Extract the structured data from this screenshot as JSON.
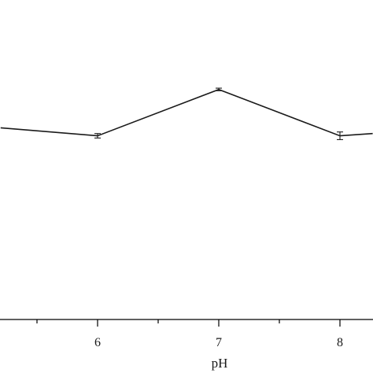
{
  "chart_data": {
    "type": "line",
    "xlabel": "pH",
    "ylabel": "",
    "title": "",
    "x_ticks_major": [
      6,
      7,
      8
    ],
    "x_ticks_minor": [
      5.5,
      6.5,
      7.5
    ],
    "xlim": [
      5.2,
      8.27
    ],
    "ylim": [
      0,
      1.0
    ],
    "grid": false,
    "legend": "none",
    "series": [
      {
        "x": [
          5.2,
          6,
          7,
          8,
          8.27
        ],
        "y": [
          0.6,
          0.575,
          0.72,
          0.575,
          0.582
        ],
        "err": [
          0,
          0.007,
          0.004,
          0.012,
          0
        ],
        "color": "#1a1a1a"
      }
    ]
  }
}
